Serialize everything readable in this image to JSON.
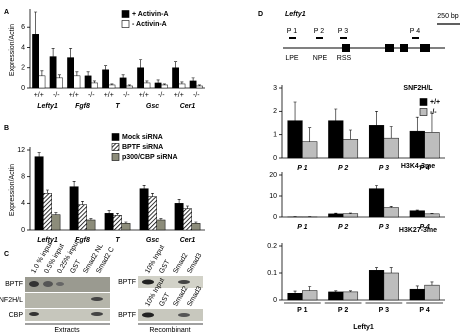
{
  "panels": [
    "A",
    "B",
    "C",
    "D"
  ],
  "chart_data": [
    {
      "type": "bar",
      "ylabel": "Expression/Actin",
      "groups": [
        "Lefty1",
        "Fgf8",
        "T",
        "Gsc",
        "Cer1"
      ],
      "categories": [
        "+/+",
        "-/-",
        "+/+",
        "-/-",
        "+/+",
        "-/-",
        "+/+",
        "-/-",
        "+/+",
        "-/-"
      ],
      "series": [
        {
          "name": "+ Activin-A",
          "color": "#000000",
          "values": [
            5.3,
            3.1,
            3.0,
            1.2,
            1.8,
            1.0,
            2.0,
            0.5,
            2.0,
            0.7
          ],
          "errors": [
            2.2,
            0.8,
            0.9,
            0.4,
            0.4,
            0.3,
            0.8,
            0.3,
            0.6,
            0.3
          ]
        },
        {
          "name": "- Activin-A",
          "color": "#ffffff",
          "values": [
            1.2,
            1.0,
            1.2,
            0.5,
            0.3,
            0.2,
            0.5,
            0.3,
            0.4,
            0.2
          ],
          "errors": [
            0.5,
            0.3,
            0.4,
            0.2,
            0.1,
            0.1,
            0.2,
            0.1,
            0.2,
            0.1
          ]
        }
      ],
      "ylim": [
        0,
        7.5
      ],
      "yticks": [
        0,
        2,
        4,
        6
      ],
      "legend": "top-right"
    },
    {
      "type": "bar",
      "ylabel": "Expression/Actin",
      "categories": [
        "Lefty1",
        "Fgf8",
        "T",
        "Gsc",
        "Cer1"
      ],
      "series": [
        {
          "name": "Mock siRNA",
          "color": "#000000",
          "values": [
            11,
            6.5,
            2.5,
            6.2,
            4.0
          ],
          "errors": [
            0.6,
            0.8,
            0.4,
            0.5,
            0.6
          ]
        },
        {
          "name": "BPTF siRNA",
          "color": "#000000",
          "hatch": true,
          "values": [
            5.5,
            3.8,
            2.2,
            5.0,
            3.2
          ],
          "errors": [
            0.5,
            0.5,
            0.3,
            0.5,
            0.4
          ]
        },
        {
          "name": "p300/CBP siRNA",
          "color": "#8c8c7a",
          "values": [
            2.3,
            1.5,
            1.0,
            1.5,
            1.0
          ],
          "errors": [
            0.3,
            0.2,
            0.2,
            0.2,
            0.2
          ]
        }
      ],
      "ylim": [
        0,
        12
      ],
      "yticks": [
        0,
        4,
        8,
        12
      ],
      "legend": "top-right"
    },
    {
      "type": "bar",
      "title": "SNF2H/L",
      "categories": [
        "P 1",
        "P 2",
        "P 3",
        "P 4"
      ],
      "series": [
        {
          "name": "+/+",
          "color": "#000000",
          "values": [
            1.6,
            1.6,
            1.4,
            1.15
          ],
          "errors": [
            0.8,
            0.5,
            0.6,
            0.6
          ]
        },
        {
          "name": "-/-",
          "color": "#bdbdbd",
          "values": [
            0.7,
            0.8,
            0.85,
            1.1
          ],
          "errors": [
            0.6,
            0.4,
            0.5,
            0.8
          ]
        }
      ],
      "ylim": [
        0,
        3
      ],
      "yticks": [
        0,
        1,
        2,
        3
      ],
      "legend": "top-right"
    },
    {
      "type": "bar",
      "title": "H3K4-3me",
      "categories": [
        "P 1",
        "P 2",
        "P 3",
        "P 4"
      ],
      "series": [
        {
          "name": "+/+",
          "color": "#000000",
          "values": [
            0.1,
            1.5,
            13.5,
            3.0
          ],
          "errors": [
            0.1,
            0.3,
            1.5,
            0.3
          ]
        },
        {
          "name": "-/-",
          "color": "#bdbdbd",
          "values": [
            0.1,
            1.6,
            4.5,
            1.5
          ],
          "errors": [
            0.1,
            0.3,
            0.6,
            0.2
          ]
        }
      ],
      "ylim": [
        0,
        20
      ],
      "yticks": [
        0,
        10,
        20
      ]
    },
    {
      "type": "bar",
      "title": "H3K27-3me",
      "xlabel": "Lefty1",
      "categories": [
        "P 1",
        "P 2",
        "P 3",
        "P 4"
      ],
      "series": [
        {
          "name": "+/+",
          "color": "#000000",
          "values": [
            0.025,
            0.03,
            0.11,
            0.04
          ],
          "errors": [
            0.008,
            0.004,
            0.01,
            0.012
          ]
        },
        {
          "name": "-/-",
          "color": "#bdbdbd",
          "values": [
            0.035,
            0.03,
            0.1,
            0.055
          ],
          "errors": [
            0.015,
            0.004,
            0.02,
            0.012
          ]
        }
      ],
      "ylim": [
        0,
        0.2
      ],
      "yticks": [
        0,
        0.1,
        0.2
      ]
    }
  ],
  "gels": {
    "left_lanes": [
      "1.0 % input",
      "0.5% input",
      "0.25% input",
      "GST",
      "Smad2 NL",
      "Smad2 C"
    ],
    "rows": [
      "BPTF",
      "SNF2H/L",
      "CBP"
    ],
    "left_caption": "Extracts",
    "right_top_lanes": [
      "10% Input",
      "GST",
      "Smad2",
      "Smad3"
    ],
    "right_bottom_lanes": [
      "10% Input",
      "GST",
      "Smad2",
      "Smad3"
    ],
    "right_rows": [
      "BPTF",
      "BPTF"
    ],
    "right_caption": "Recombinant"
  },
  "gene_map": {
    "title": "Lefty1",
    "scale": "250 bp",
    "probes": [
      "P 1",
      "P 2",
      "P 3",
      "P 4"
    ],
    "elements": [
      "LPE",
      "NPE",
      "RSS"
    ]
  }
}
